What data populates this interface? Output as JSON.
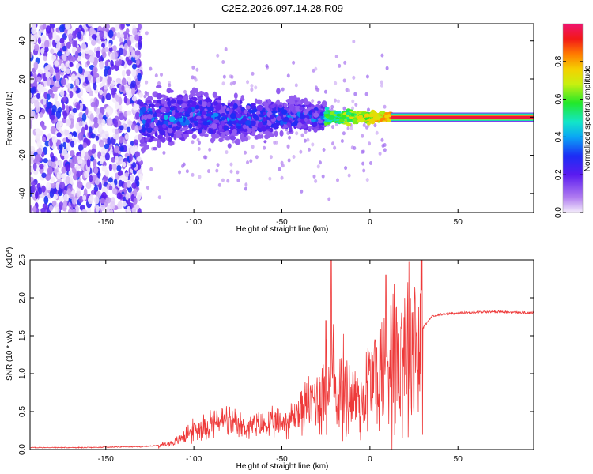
{
  "chart_data": [
    {
      "type": "heatmap",
      "title": "C2E2.2026.097.14.28.R09",
      "xlabel": "Height of straight line (km)",
      "ylabel": "Frequency (Hz)",
      "xlim": [
        -193,
        93
      ],
      "ylim": [
        -50,
        49
      ],
      "xticks": [
        -150,
        -100,
        -50,
        0,
        50
      ],
      "yticks": [
        -40,
        -20,
        0,
        20,
        40
      ],
      "xtick_labels": [
        "-150",
        "-100",
        "-50",
        "0",
        "50"
      ],
      "ytick_labels": [
        "-40",
        "-20",
        "0",
        "20",
        "40"
      ],
      "colorbar": {
        "label": "Normalized spectral amplitude",
        "range": [
          0,
          1
        ],
        "ticks": [
          0.0,
          0.2,
          0.4,
          0.6,
          0.8
        ],
        "tick_labels": [
          "0.0",
          "0.2",
          "0.4",
          "0.6",
          "0.8"
        ],
        "colormap": "rainbow (purple → blue → cyan → green → yellow → red → magenta)"
      },
      "regions": [
        {
          "x_range": [
            -193,
            -130
          ],
          "freq_range": [
            -50,
            49
          ],
          "amplitude": 0.05,
          "description": "broadband noise"
        },
        {
          "x_range": [
            -130,
            -25
          ],
          "freq_center": 0,
          "freq_halfwidth": [
            12,
            6
          ],
          "amplitude": [
            0.1,
            0.4
          ],
          "description": "emerging signal band"
        },
        {
          "x_range": [
            -25,
            12
          ],
          "freq_center": 0,
          "freq_halfwidth": [
            4,
            2
          ],
          "amplitude": [
            0.4,
            0.85
          ],
          "description": "narrowing signal"
        },
        {
          "x_range": [
            12,
            93
          ],
          "freq_center": 0,
          "freq_halfwidth": 1.5,
          "amplitude": 0.95,
          "description": "steady tone"
        }
      ]
    },
    {
      "type": "line",
      "xlabel": "Height of straight line (km)",
      "ylabel": "SNR (10 * v/v)",
      "exponent_label": "(x10",
      "exponent_power": "4",
      "exponent_close": ")",
      "xlim": [
        -193,
        93
      ],
      "ylim": [
        0,
        2.5
      ],
      "xticks": [
        -150,
        -100,
        -50,
        0,
        50
      ],
      "xtick_labels": [
        "-150",
        "-100",
        "-50",
        "0",
        "50"
      ],
      "yticks": [
        0,
        0.5,
        1.0,
        1.5,
        2.0,
        2.5
      ],
      "ytick_labels": [
        "0.0",
        "0.5",
        "1.0",
        "1.5",
        "2.0",
        "2.5"
      ],
      "color": "#ee3a3a",
      "series": [
        {
          "name": "SNR",
          "x": [
            -193,
            -160,
            -140,
            -130,
            -120,
            -110,
            -105,
            -100,
            -95,
            -90,
            -85,
            -80,
            -75,
            -70,
            -65,
            -60,
            -55,
            -50,
            -45,
            -40,
            -35,
            -30,
            -25,
            -22,
            -20,
            -15,
            -10,
            -5,
            0,
            5,
            8,
            10,
            15,
            20,
            25,
            30,
            35,
            40,
            50,
            60,
            70,
            80,
            93
          ],
          "y": [
            0.02,
            0.02,
            0.03,
            0.03,
            0.05,
            0.1,
            0.2,
            0.25,
            0.3,
            0.35,
            0.38,
            0.35,
            0.3,
            0.3,
            0.3,
            0.32,
            0.33,
            0.35,
            0.4,
            0.5,
            0.6,
            0.7,
            0.75,
            0.9,
            0.85,
            0.75,
            0.7,
            0.65,
            0.9,
            1.0,
            1.1,
            1.2,
            1.3,
            1.4,
            1.5,
            1.6,
            1.75,
            1.78,
            1.8,
            1.81,
            1.82,
            1.81,
            1.8
          ]
        }
      ],
      "spikes": [
        {
          "x": -22,
          "y": 2.5
        },
        {
          "x": 9,
          "y": 2.3
        },
        {
          "x": -25,
          "y": 1.7
        },
        {
          "x": 12,
          "y": 1.9
        }
      ]
    }
  ]
}
